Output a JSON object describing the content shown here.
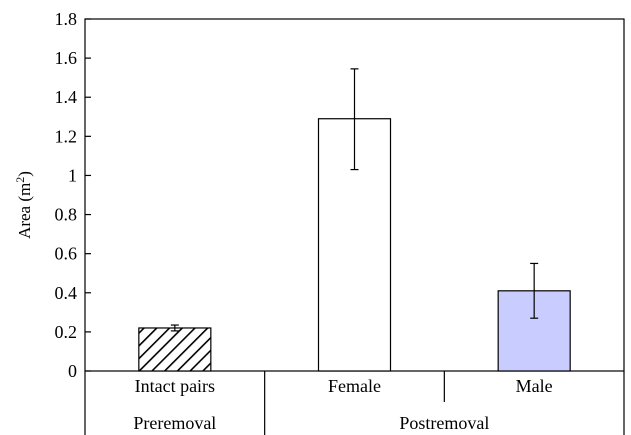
{
  "chart_data": {
    "type": "bar",
    "title": "",
    "xlabel": "",
    "ylabel": "Area (m",
    "ylabel_superscript": "2",
    "ylabel_suffix": ")",
    "ylim": [
      0,
      1.8
    ],
    "yticks": [
      {
        "value": 0,
        "label": "0"
      },
      {
        "value": 0.2,
        "label": "0.2"
      },
      {
        "value": 0.4,
        "label": "0.4"
      },
      {
        "value": 0.6,
        "label": "0.6"
      },
      {
        "value": 0.8,
        "label": "0.8"
      },
      {
        "value": 1,
        "label": "1"
      },
      {
        "value": 1.2,
        "label": "1.2"
      },
      {
        "value": 1.4,
        "label": "1.4"
      },
      {
        "value": 1.6,
        "label": "1.6"
      },
      {
        "value": 1.8,
        "label": "1.8"
      }
    ],
    "categories": [
      "Intact pairs",
      "Female",
      "Male"
    ],
    "values": [
      0.22,
      1.29,
      0.41
    ],
    "error_low": [
      0.205,
      1.03,
      0.27
    ],
    "error_high": [
      0.235,
      1.545,
      0.55
    ],
    "bar_fills": [
      "hatch",
      "#ffffff",
      "#c8ccff"
    ],
    "groups": [
      {
        "label": "Preremoval",
        "categories": [
          "Intact pairs"
        ]
      },
      {
        "label": "Postremoval",
        "categories": [
          "Female",
          "Male"
        ]
      }
    ],
    "grid": false,
    "legend": "none"
  }
}
